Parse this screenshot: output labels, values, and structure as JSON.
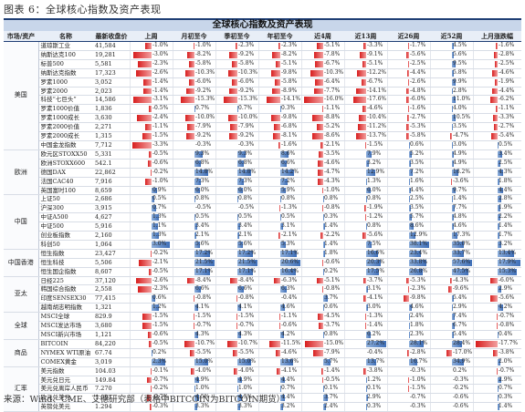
{
  "figure_title": "图表 6：全球核心指数及资产表现",
  "table_title": "全球核心指数及资产表现",
  "source": "来源：Wind、CME、艾德研究部（表格中BITCOIN为BITCOIN期货）",
  "headers": [
    "市场/资产",
    "名称",
    "最新收盘价",
    "上周",
    "月初至今",
    "季初至今",
    "年初至今",
    "近4周",
    "近13周",
    "近26周",
    "近52周",
    "上月涨跌幅"
  ],
  "colors": {
    "positive": "#3f6fb8",
    "negative": "#d81e1e",
    "header_bg": "#e8eef7",
    "title_bg": "#c8d6ea"
  },
  "groups": [
    {
      "market": "美国",
      "rows": [
        {
          "name": "道琼斯工业",
          "close": "41,584",
          "vals": [
            -1.0,
            -1.0,
            -2.3,
            -2.3,
            -5.1,
            -3.3,
            -1.7,
            4.5,
            -1.6
          ]
        },
        {
          "name": "纳斯达克100",
          "close": "19,281",
          "vals": [
            -3.0,
            -8.2,
            -9.2,
            -8.2,
            -7.8,
            -9.1,
            -5.6,
            5.6,
            -2.8
          ]
        },
        {
          "name": "标普500",
          "close": "5,581",
          "vals": [
            -2.3,
            -5.8,
            -5.8,
            -5.1,
            -6.7,
            -5.1,
            -2.5,
            9.5,
            -2.5
          ]
        },
        {
          "name": "纳斯达克指数",
          "close": "17,323",
          "vals": [
            -2.6,
            -10.3,
            -10.3,
            -9.8,
            -10.3,
            -12.2,
            -4.4,
            5.8,
            -4.6
          ]
        },
        {
          "name": "罗素1000",
          "close": "3,052",
          "vals": [
            -1.4,
            -6.0,
            -6.0,
            -5.8,
            -6.4,
            -6.7,
            -2.6,
            9.9,
            -1.9
          ]
        },
        {
          "name": "罗素2000",
          "close": "2,023",
          "vals": [
            -1.4,
            -9.2,
            -9.2,
            -8.9,
            -7.7,
            -14.1,
            -4.8,
            2.8,
            -4.4
          ]
        },
        {
          "name": "科技“七巨头”",
          "close": "14,586",
          "vals": [
            -3.1,
            -15.3,
            -15.3,
            -14.1,
            -16.0,
            -17.6,
            -6.0,
            11.0,
            -6.2
          ]
        },
        {
          "name": "罗素1000价值",
          "close": "1,836",
          "vals": [
            -0.5,
            0.7,
            0.7,
            0.3,
            -1.1,
            -4.6,
            -1.6,
            4.0,
            -1.1
          ]
        },
        {
          "name": "罗素1000成长",
          "close": "3,630",
          "vals": [
            -2.4,
            -10.0,
            -10.0,
            -9.8,
            -8.8,
            -10.4,
            -2.7,
            10.5,
            -3.3
          ]
        },
        {
          "name": "罗素2000价值",
          "close": "2,271",
          "vals": [
            -1.1,
            -7.9,
            -7.9,
            -6.8,
            -5.2,
            -11.2,
            -5.3,
            3.5,
            -2.7
          ]
        },
        {
          "name": "罗素2000成长",
          "close": "1,315",
          "vals": [
            -1.5,
            -9.2,
            -9.2,
            -8.1,
            -8.6,
            -13.7,
            -5.8,
            -4.7,
            -5.4
          ]
        },
        {
          "name": "中国金龙指数",
          "close": "7,712",
          "vals": [
            -3.3,
            -0.3,
            -0.3,
            -1.6,
            -2.1,
            -1.5,
            0.6,
            3.0,
            0.5
          ]
        }
      ]
    },
    {
      "market": "欧洲",
      "rows": [
        {
          "name": "欧元区STOXX50",
          "close": "5,331",
          "vals": [
            -0.5,
            9.3,
            9.3,
            8.6,
            -3.5,
            7.9,
            5.2,
            4.9,
            3.4
          ]
        },
        {
          "name": "欧洲STOXX600",
          "close": "542.1",
          "vals": [
            -0.6,
            6.8,
            6.8,
            6.6,
            -4.6,
            3.2,
            3.5,
            4.9,
            2.5
          ]
        },
        {
          "name": "德国DAX",
          "close": "22,862",
          "vals": [
            -0.2,
            14.8,
            14.8,
            14.2,
            -4.7,
            12.9,
            7.2,
            18.2,
            4.3
          ]
        },
        {
          "name": "法国CAC40",
          "close": "7,916",
          "vals": [
            -1.0,
            7.3,
            7.3,
            7.2,
            -4.3,
            1.3,
            1.6,
            -3.6,
            1.8
          ]
        },
        {
          "name": "英国富时100",
          "close": "8,659",
          "vals": [
            0.9,
            6.0,
            6.0,
            5.9,
            -1.0,
            6.0,
            4.4,
            9.7,
            4.4
          ]
        }
      ]
    },
    {
      "market": "中国",
      "rows": [
        {
          "name": "上证50",
          "close": "2,686",
          "vals": [
            0.5,
            0.8,
            0.8,
            0.8,
            0.8,
            0.8,
            2.5,
            1.4,
            2.8
          ]
        },
        {
          "name": "沪深300",
          "close": "3,915",
          "vals": [
            0.7,
            -0.5,
            -0.5,
            -1.3,
            -0.8,
            -1.9,
            3.5,
            7.7,
            1.9
          ]
        },
        {
          "name": "中证A500",
          "close": "4,627",
          "vals": [
            1.3,
            0.5,
            0.5,
            0.5,
            0.3,
            -1.2,
            5.7,
            4.8,
            2.2
          ]
        },
        {
          "name": "中证500",
          "close": "5,916",
          "vals": [
            1.1,
            3.4,
            3.4,
            3.1,
            1.4,
            0.8,
            8.6,
            4.6,
            1.4
          ]
        },
        {
          "name": "创业板指数",
          "close": "2,160",
          "vals": [
            1.3,
            2.1,
            2.1,
            -2.1,
            -2.2,
            -5.6,
            12.9,
            17.3,
            1.7
          ]
        },
        {
          "name": "科创50",
          "close": "1,064",
          "vals": [
            3.0,
            5.6,
            5.6,
            5.3,
            1.4,
            7.5,
            38.1,
            35.0,
            3.2
          ]
        }
      ]
    },
    {
      "market": "中国香港",
      "rows": [
        {
          "name": "恒生指数",
          "close": "23,427",
          "vals": [
            -0.2,
            17.2,
            17.2,
            17.1,
            1.8,
            16.6,
            23.4,
            33.7,
            13.4
          ]
        },
        {
          "name": "恒生科技",
          "close": "5,506",
          "vals": [
            -2.1,
            21.5,
            21.5,
            20.6,
            -0.6,
            20.3,
            33.8,
            57.6,
            17.9
          ]
        },
        {
          "name": "恒生国企指数",
          "close": "8,607",
          "vals": [
            -0.5,
            17.1,
            17.1,
            16.4,
            0.2,
            17.5,
            26.8,
            47.5,
            15.3
          ]
        }
      ]
    },
    {
      "market": "亚太",
      "rows": [
        {
          "name": "日经225",
          "close": "37,120",
          "vals": [
            -2.6,
            -8.4,
            -8.4,
            -6.3,
            -5.1,
            -3.7,
            -5.3,
            -4.3,
            -6.0
          ]
        },
        {
          "name": "韩国综合指数",
          "close": "2,558",
          "vals": [
            -2.3,
            6.6,
            6.6,
            6.3,
            -0.8,
            3.1,
            -2.3,
            -9.6,
            2.9
          ]
        },
        {
          "name": "印度SENSEX30",
          "close": "77,415",
          "vals": [
            0.6,
            -0.8,
            -0.8,
            -0.4,
            3.7,
            -4.1,
            -9.8,
            5.4,
            -5.6
          ]
        },
        {
          "name": "越南胡志明指数",
          "close": "1,321",
          "vals": [
            1.2,
            4.1,
            4.1,
            4.6,
            0.6,
            3.0,
            4.6,
            2.9,
            4.2
          ]
        }
      ]
    },
    {
      "market": "全球",
      "rows": [
        {
          "name": "MSCI全球",
          "close": "829.9",
          "vals": [
            -1.5,
            -1.5,
            -1.5,
            -1.1,
            -4.5,
            -1.3,
            2.4,
            7.4,
            -0.7
          ]
        },
        {
          "name": "MSCI发达市场",
          "close": "3,680",
          "vals": [
            -1.5,
            -0.7,
            -0.7,
            -0.6,
            -3.7,
            -1.4,
            1.8,
            6.7,
            -0.8
          ]
        },
        {
          "name": "MSCI新兴市场",
          "close": "1,121",
          "vals": [
            -0.6,
            4.3,
            4.3,
            4.2,
            0.8,
            6.2,
            2.3,
            5.4,
            0.4
          ]
        }
      ]
    },
    {
      "market": "商品",
      "rows": [
        {
          "name": "BITCOIN",
          "close": "84,220",
          "vals": [
            -0.5,
            -10.7,
            -10.7,
            -11.5,
            -15.0,
            27.2,
            28.1,
            28.4,
            -17.7
          ]
        },
        {
          "name": "NYMEX WTI原油",
          "close": "67.74",
          "vals": [
            0.2,
            -5.5,
            -5.5,
            -4.6,
            -7.9,
            -0.4,
            -2.8,
            -17.0,
            -3.8
          ]
        },
        {
          "name": "COMEX黄金",
          "close": "3,019",
          "vals": [
            2.3,
            15.0,
            15.0,
            13.6,
            5.7,
            13.7,
            16.7,
            34.9,
            2.0
          ]
        }
      ]
    },
    {
      "market": "汇率",
      "rows": [
        {
          "name": "美元指数",
          "close": "104.03",
          "vals": [
            -0.1,
            -4.0,
            -4.0,
            -4.1,
            -1.4,
            -3.8,
            -0.3,
            0.2,
            -0.7
          ]
        },
        {
          "name": "美元兑日元",
          "close": "149.84",
          "vals": [
            -0.7,
            4.9,
            4.9,
            4.4,
            -0.5,
            1.2,
            -1.0,
            -0.3,
            2.9
          ]
        },
        {
          "name": "美元兑离岸人民币",
          "close": "7.270",
          "vals": [
            -0.2,
            1.0,
            1.0,
            0.7,
            0.1,
            0.1,
            -1.5,
            -0.2,
            0.7
          ]
        },
        {
          "name": "欧元兑美元",
          "close": "1.081",
          "vals": [
            -0.7,
            4.5,
            4.5,
            4.4,
            3.7,
            2.9,
            -0.7,
            -0.6,
            0.3
          ]
        },
        {
          "name": "英镑兑美元",
          "close": "1.294",
          "vals": [
            -0.3,
            3.3,
            3.3,
            3.2,
            2.4,
            0.3,
            -0.3,
            -0.6,
            1.4
          ]
        }
      ]
    }
  ]
}
